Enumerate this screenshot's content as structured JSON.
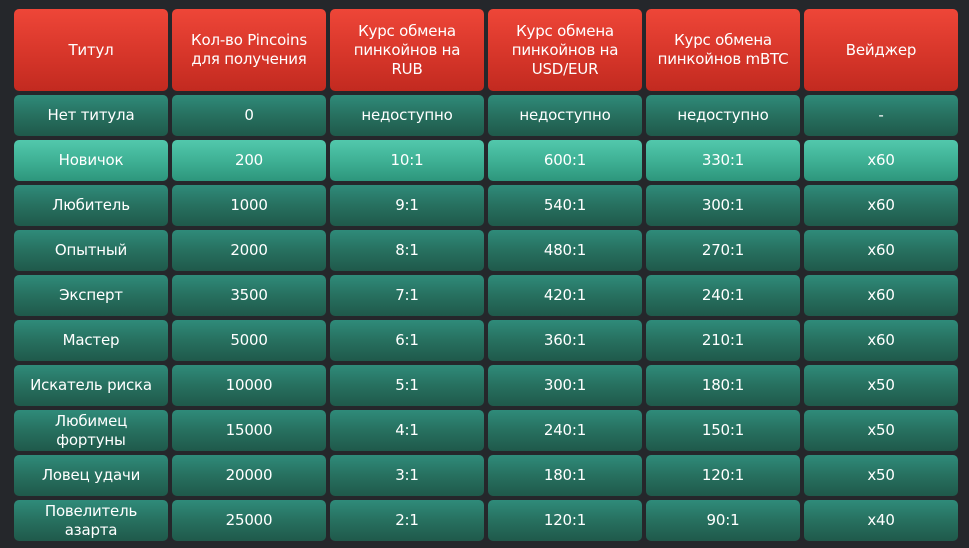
{
  "headers": [
    "Титул",
    "Кол-во Pincoins для получения",
    "Курс обмена пинкойнов на RUB",
    "Курс обмена пинкойнов на USD/EUR",
    "Курс обмена пинкойнов mBTC",
    "Вейджер"
  ],
  "rows": [
    [
      "Нет титула",
      "0",
      "недоступно",
      "недоступно",
      "недоступно",
      "-"
    ],
    [
      "Новичок",
      "200",
      "10:1",
      "600:1",
      "330:1",
      "x60"
    ],
    [
      "Любитель",
      "1000",
      "9:1",
      "540:1",
      "300:1",
      "x60"
    ],
    [
      "Опытный",
      "2000",
      "8:1",
      "480:1",
      "270:1",
      "x60"
    ],
    [
      "Эксперт",
      "3500",
      "7:1",
      "420:1",
      "240:1",
      "x60"
    ],
    [
      "Мастер",
      "5000",
      "6:1",
      "360:1",
      "210:1",
      "x60"
    ],
    [
      "Искатель риска",
      "10000",
      "5:1",
      "300:1",
      "180:1",
      "x50"
    ],
    [
      "Любимец фортуны",
      "15000",
      "4:1",
      "240:1",
      "150:1",
      "x50"
    ],
    [
      "Ловец удачи",
      "20000",
      "3:1",
      "180:1",
      "120:1",
      "x50"
    ],
    [
      "Повелитель азарта",
      "25000",
      "2:1",
      "120:1",
      "90:1",
      "x40"
    ]
  ],
  "highlighted_row": 1,
  "colors": {
    "background": "#25272b",
    "header": "#d7362a",
    "row": "#27705f",
    "row_highlight": "#3fb195",
    "text": "#ffffff"
  }
}
